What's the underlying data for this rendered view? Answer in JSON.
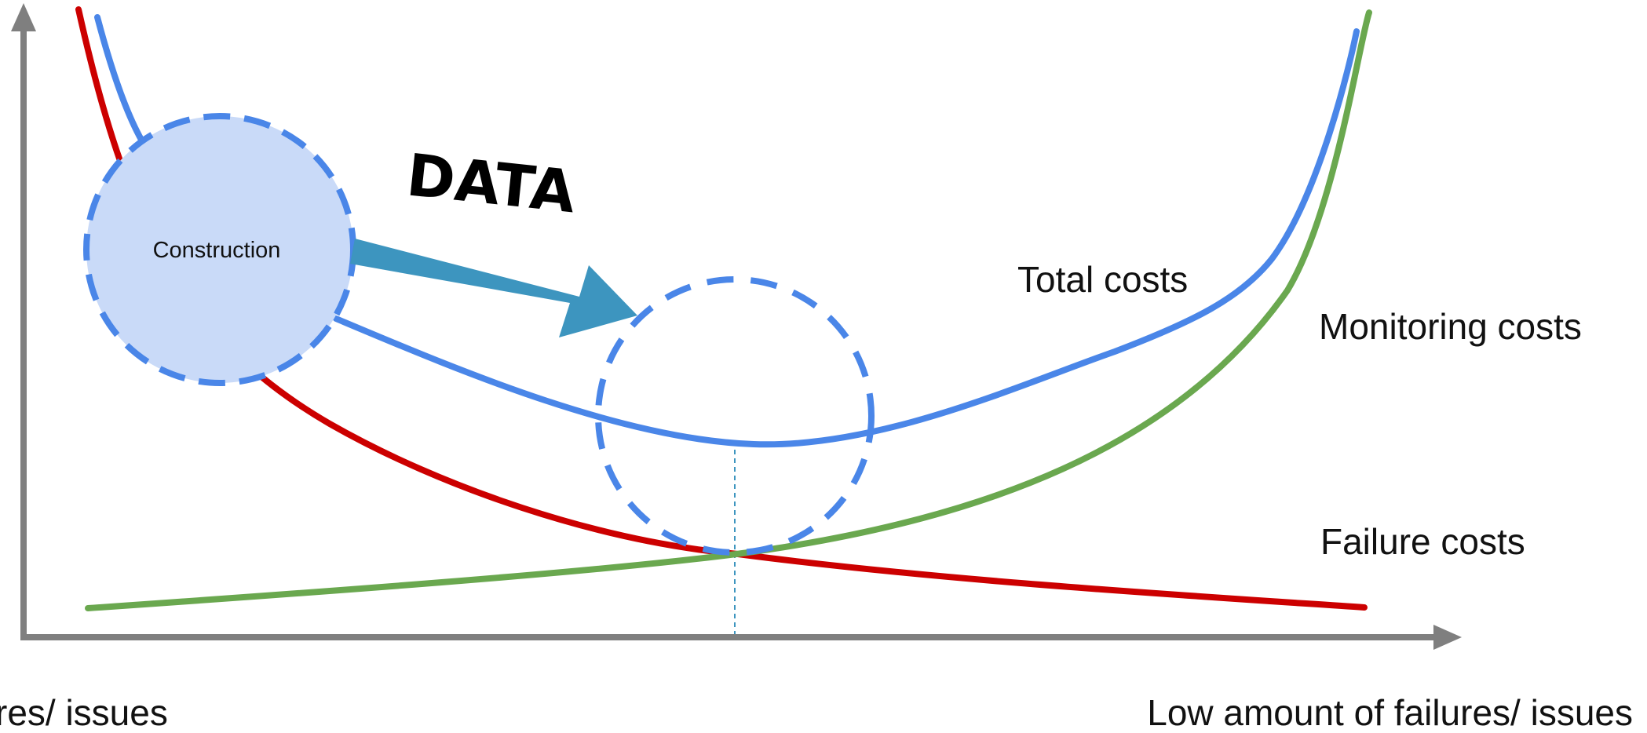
{
  "diagram": {
    "data_word": "DATA",
    "circle_label": "Construction",
    "x_axis_left_label": "res/ issues",
    "x_axis_right_label": "Low amount of  failures/ issues",
    "series": {
      "total": {
        "label": "Total costs",
        "color": "#4A86E8"
      },
      "monitoring": {
        "label": "Monitoring costs",
        "color": "#6AA84F"
      },
      "failure": {
        "label": "Failure costs",
        "color": "#CC0000"
      }
    },
    "colors": {
      "axis": "#7F7F7F",
      "arrow": "#3D95BF",
      "circle_fill": "#C9DAF8",
      "circle_stroke": "#4A86E8"
    }
  }
}
